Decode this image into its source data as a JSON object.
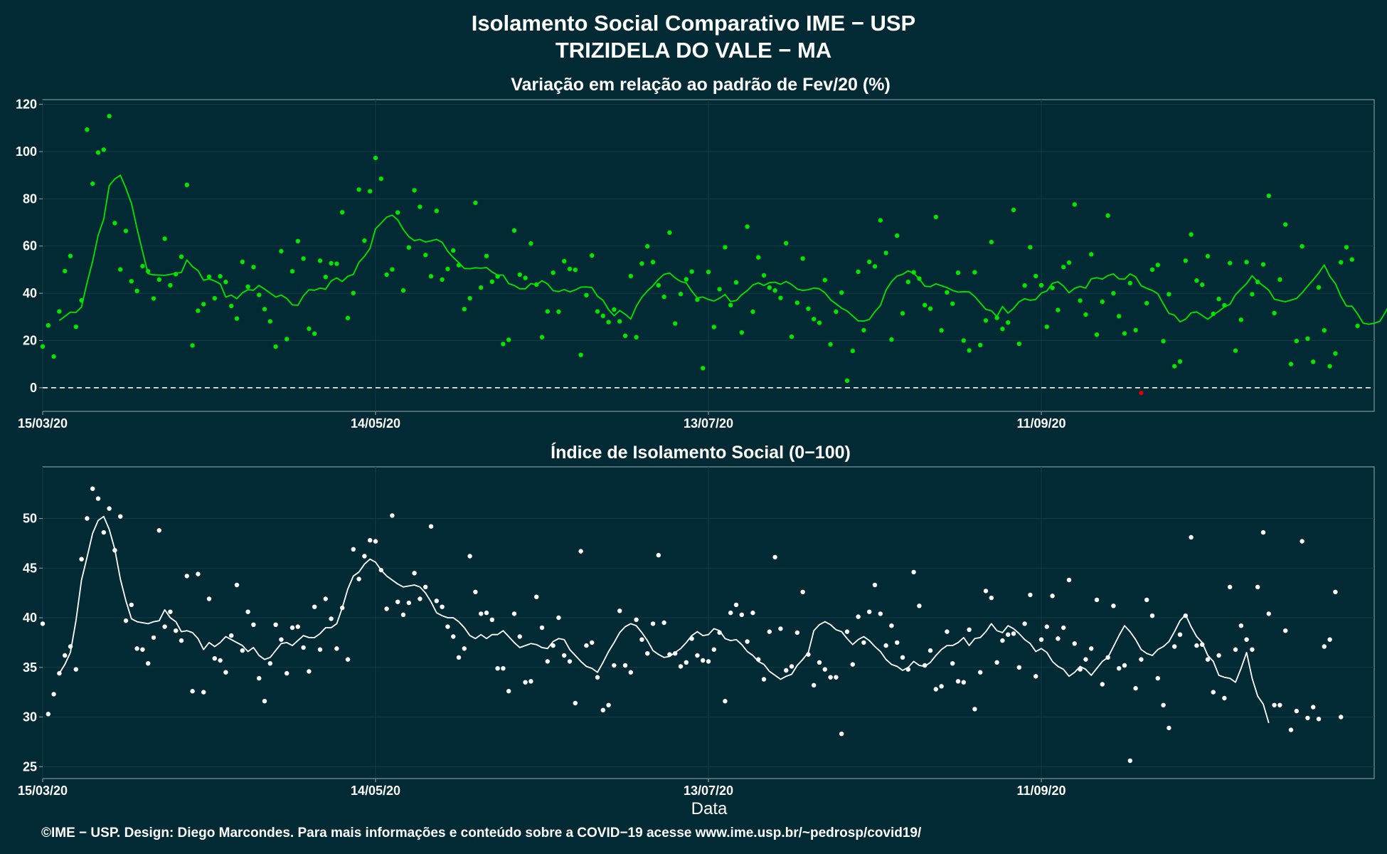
{
  "title": "Isolamento Social Comparativo IME − USP",
  "subtitle": "TRIZIDELA DO VALE − MA",
  "xlabel": "Data",
  "footer": "©IME − USP. Design: Diego Marcondes. Para mais informações e conteúdo sobre a COVID−19 acesse www.ime.usp.br/~pedrosp/covid19/",
  "colors": {
    "background": "#022a35",
    "top_series": "#00e600",
    "bottom_series": "#ffffff",
    "negative_highlight": "#e00000",
    "zero_line": "#ffffff"
  },
  "chart_data": [
    {
      "type": "scatter",
      "title": "Variação em relação ao padrão de Fev/20 (%)",
      "ylim": [
        -10,
        122
      ],
      "yticks": [
        "0",
        "20",
        "40",
        "60",
        "80",
        "100",
        "120"
      ],
      "ytick_values": [
        0,
        20,
        40,
        60,
        80,
        100,
        120
      ],
      "xrange_days": [
        "15/03/20",
        "10/11/20"
      ],
      "xticks": [
        "15/03/20",
        "14/05/20",
        "13/07/20",
        "11/09/20"
      ],
      "xtick_days": [
        0,
        60,
        120,
        180
      ],
      "grid": true,
      "reference_line": 0,
      "series": [
        {
          "kind": "points",
          "x_start": "15/03/20",
          "values": [
            17.5,
            26.4,
            13.2,
            32.3,
            49.4,
            55.8,
            25.8,
            37.0,
            109.3,
            86.4,
            99.6,
            100.8,
            115.0,
            69.7,
            50.1,
            66.4,
            45.1,
            41.0,
            51.5,
            49.3,
            37.8,
            45.8,
            63.1,
            43.4,
            48.1,
            55.5,
            85.9,
            17.9,
            32.6,
            35.4,
            47.0,
            37.9,
            47.2,
            44.8,
            34.6,
            29.3,
            53.3,
            42.8,
            51.1,
            39.3,
            33.3,
            28.1,
            17.4,
            57.8,
            20.6,
            49.3,
            62.1,
            54.7,
            25.0,
            22.9,
            53.8,
            46.9,
            52.7,
            52.5,
            74.3,
            29.5,
            40.1,
            83.9,
            62.3,
            83.2,
            97.3,
            88.5,
            47.9,
            50.1,
            74.2,
            41.2,
            59.4,
            83.6,
            76.6,
            56.2,
            47.2,
            74.9,
            45.8,
            50.3,
            58.1,
            51.9,
            33.3,
            37.9,
            78.3,
            42.4,
            55.8,
            44.9,
            47.1,
            18.5,
            20.3,
            66.6,
            47.9,
            46.5,
            61.1,
            43.7,
            21.4,
            32.3,
            48.7,
            32.2,
            53.6,
            50.3,
            49.9,
            13.9,
            39.2,
            56.0,
            32.3,
            30.4,
            27.8,
            33.1,
            28.1,
            22.0,
            47.3,
            21.4,
            52.6,
            59.9,
            53.2,
            43.4,
            38.5,
            65.7,
            27.2,
            39.7,
            45.9,
            49.2,
            37.3,
            8.3,
            49.0,
            25.7,
            41.7,
            59.5,
            35.0,
            44.6,
            23.4,
            68.2,
            32.2,
            55.2,
            47.6,
            42.4,
            41.2,
            38.0,
            61.2,
            21.6,
            36.0,
            54.7,
            33.5,
            29.1,
            27.5,
            45.6,
            18.4,
            32.2,
            40.3,
            3.0,
            15.6,
            49.1,
            24.4,
            53.3,
            51.4,
            70.9,
            57.1,
            20.4,
            64.4,
            31.5,
            44.8,
            48.9,
            46.2,
            35.0,
            33.5,
            72.3,
            24.3,
            40.4,
            35.6,
            48.7,
            20.0,
            15.8,
            48.9,
            18.1,
            28.5,
            61.7,
            29.6,
            24.9,
            27.6,
            75.3,
            18.6,
            43.3,
            59.5,
            47.3,
            43.4,
            25.8,
            42.3,
            32.9,
            51.1,
            53.0,
            77.6,
            36.9,
            31.0,
            56.5,
            22.5,
            36.4,
            72.9,
            40.0,
            30.3,
            23.0,
            44.3,
            24.4,
            -2.2,
            35.8,
            50.0,
            52.0,
            19.7,
            39.6,
            9.1,
            11.1,
            53.8,
            64.9,
            45.4,
            43.6,
            55.7,
            31.3,
            37.6,
            34.9,
            52.8,
            15.7,
            28.8,
            53.2,
            39.6,
            44.8,
            52.2,
            81.3,
            31.6,
            45.8,
            69.1,
            10.0,
            19.8,
            59.9,
            20.8,
            11.0,
            42.5,
            24.3,
            9.1,
            14.5,
            53.1,
            59.5,
            54.3,
            26.2
          ]
        },
        {
          "kind": "moving_average",
          "x_start": "18/03/20",
          "values": [
            28.5,
            30.2,
            32.0,
            31.9,
            34.2,
            44.5,
            53.5,
            64.6,
            71.3,
            85.6,
            88.4,
            90.0,
            84.5,
            78.1,
            67.5,
            57.7,
            48.3,
            47.8,
            47.7,
            47.6,
            48.0,
            48.5,
            48.8,
            54.1,
            51.3,
            49.6,
            45.5,
            46.1,
            45.2,
            44.0,
            38.4,
            39.2,
            37.7,
            40.2,
            41.5,
            41.3,
            43.3,
            41.8,
            40.1,
            38.4,
            39.2,
            37.8,
            35.1,
            34.9,
            38.9,
            41.5,
            41.3,
            42.2,
            41.7,
            45.2,
            46.5,
            45.0,
            47.2,
            48.0,
            53.1,
            55.6,
            59.0,
            67.3,
            69.7,
            72.2,
            73.1,
            71.1,
            67.0,
            64.0,
            62.3,
            62.8,
            61.7,
            62.2,
            62.8,
            61.6,
            57.8,
            55.2,
            53.0,
            50.5,
            50.4,
            50.8,
            50.6,
            50.9,
            49.0,
            47.7,
            47.7,
            44.1,
            43.3,
            41.9,
            41.9,
            44.1,
            43.6,
            45.3,
            44.0,
            41.1,
            40.7,
            41.6,
            40.6,
            41.4,
            42.6,
            42.7,
            42.4,
            38.8,
            37.0,
            33.1,
            30.5,
            32.7,
            31.1,
            29.1,
            34.5,
            38.3,
            41.0,
            43.2,
            45.9,
            48.0,
            48.6,
            46.5,
            45.0,
            44.4,
            40.9,
            38.0,
            38.4,
            37.4,
            36.7,
            37.9,
            39.5,
            36.5,
            36.9,
            39.4,
            41.1,
            43.5,
            44.4,
            43.3,
            44.5,
            44.7,
            43.8,
            45.0,
            43.7,
            41.8,
            41.2,
            41.5,
            42.2,
            41.9,
            40.2,
            37.3,
            35.5,
            33.7,
            32.5,
            30.4,
            28.3,
            28.2,
            28.9,
            32.2,
            34.8,
            41.3,
            44.9,
            47.3,
            48.0,
            49.5,
            48.5,
            46.1,
            43.0,
            42.8,
            44.0,
            43.2,
            42.4,
            41.2,
            40.5,
            40.7,
            40.6,
            38.6,
            35.9,
            33.2,
            32.6,
            30.1,
            34.4,
            31.6,
            33.6,
            36.4,
            37.7,
            37.0,
            37.4,
            40.1,
            41.0,
            44.2,
            44.9,
            43.0,
            40.2,
            42.1,
            42.9,
            42.2,
            46.1,
            46.6,
            46.0,
            47.5,
            48.2,
            46.1,
            46.0,
            48.2,
            47.0,
            43.2,
            42.1,
            41.2,
            39.8,
            35.5,
            31.5,
            30.7,
            27.9,
            29.0,
            31.7,
            32.1,
            30.6,
            29.0,
            30.8,
            32.4,
            34.2,
            35.3,
            39.4,
            41.8,
            44.1,
            47.4,
            44.9,
            43.2,
            41.3,
            37.5,
            36.9,
            36.4,
            37.1,
            37.8,
            40.2,
            43.0,
            45.7,
            48.6,
            52.0,
            47.2,
            44.1,
            38.7,
            34.6,
            34.5,
            31.3,
            27.4,
            26.9,
            27.3,
            28.1,
            31.9,
            36.4,
            34.7
          ]
        }
      ]
    },
    {
      "type": "scatter",
      "title": "Índice de Isolamento Social (0−100)",
      "ylim": [
        23.8,
        55.2
      ],
      "yticks": [
        "25",
        "30",
        "35",
        "40",
        "45",
        "50"
      ],
      "ytick_values": [
        25,
        30,
        35,
        40,
        45,
        50
      ],
      "xrange_days": [
        "15/03/20",
        "10/11/20"
      ],
      "xticks": [
        "15/03/20",
        "14/05/20",
        "13/07/20",
        "11/09/20"
      ],
      "xtick_days": [
        0,
        60,
        120,
        180
      ],
      "grid": true,
      "series": [
        {
          "kind": "points",
          "x_start": "15/03/20",
          "values": [
            39.4,
            30.3,
            32.3,
            34.4,
            36.2,
            37.1,
            34.8,
            45.9,
            50.0,
            53.0,
            52.0,
            48.6,
            51.0,
            46.8,
            50.2,
            39.7,
            41.3,
            36.9,
            36.8,
            35.4,
            38.0,
            48.8,
            39.1,
            40.6,
            38.7,
            37.7,
            44.2,
            32.6,
            44.4,
            32.5,
            41.9,
            35.9,
            35.7,
            34.5,
            38.2,
            43.3,
            36.7,
            40.6,
            39.3,
            33.9,
            31.6,
            35.4,
            39.3,
            37.8,
            34.4,
            39.0,
            39.1,
            37.0,
            34.6,
            41.1,
            36.8,
            41.9,
            39.9,
            36.9,
            41.0,
            35.8,
            46.9,
            43.9,
            46.2,
            47.8,
            47.7,
            44.8,
            40.9,
            50.3,
            41.6,
            40.3,
            41.5,
            44.5,
            41.9,
            43.1,
            49.2,
            41.7,
            41.1,
            39.1,
            38.1,
            36.0,
            36.9,
            46.2,
            42.6,
            40.4,
            40.5,
            39.8,
            34.9,
            34.9,
            32.6,
            40.4,
            38.1,
            33.5,
            33.6,
            42.1,
            39.0,
            35.6,
            37.2,
            40.0,
            36.2,
            35.6,
            31.4,
            46.7,
            37.2,
            37.5,
            34.0,
            30.7,
            31.2,
            35.2,
            40.7,
            35.2,
            34.5,
            39.8,
            37.8,
            36.4,
            39.4,
            46.3,
            39.5,
            36.3,
            36.4,
            35.1,
            35.5,
            37.9,
            36.2,
            35.7,
            35.6,
            36.8,
            38.5,
            31.6,
            40.5,
            41.3,
            40.3,
            37.6,
            40.5,
            35.8,
            33.8,
            38.6,
            46.1,
            38.9,
            34.7,
            35.1,
            38.5,
            42.6,
            36.3,
            33.2,
            35.5,
            34.8,
            34.0,
            34.0,
            28.3,
            38.6,
            35.3,
            40.1,
            37.5,
            40.6,
            43.3,
            40.4,
            37.2,
            39.2,
            37.5,
            36.0,
            34.8,
            44.6,
            41.2,
            35.2,
            36.7,
            32.8,
            33.1,
            38.6,
            35.4,
            33.6,
            33.5,
            38.8,
            30.8,
            34.5,
            42.7,
            42.0,
            35.5,
            37.7,
            38.3,
            38.4,
            35.0,
            39.4,
            42.3,
            34.1,
            37.8,
            39.1,
            42.2,
            37.9,
            39.0,
            43.8,
            37.4,
            34.8,
            35.8,
            36.9,
            41.8,
            33.3,
            36.0,
            41.2,
            34.9,
            35.2,
            25.6,
            32.9,
            35.8,
            41.8,
            40.2,
            33.9,
            31.2,
            28.9,
            37.1,
            38.3,
            40.2,
            48.1,
            37.2,
            37.3,
            35.8,
            32.5,
            36.2,
            31.9,
            43.1,
            36.8,
            39.2,
            37.8,
            36.8,
            43.1,
            48.6,
            40.4,
            31.2,
            31.2,
            38.7,
            28.7,
            30.6,
            47.7,
            29.9,
            31.0,
            29.8,
            37.1,
            37.8,
            42.6,
            30.0
          ]
        },
        {
          "kind": "moving_average",
          "x_start": "18/03/20",
          "values": [
            34.4,
            35.3,
            36.5,
            39.7,
            43.8,
            46.1,
            48.5,
            49.8,
            50.2,
            48.9,
            46.9,
            43.9,
            41.7,
            39.9,
            39.6,
            39.5,
            39.4,
            39.6,
            39.7,
            40.8,
            40.0,
            39.6,
            38.6,
            38.7,
            38.5,
            37.9,
            36.8,
            37.5,
            37.1,
            37.5,
            38.1,
            37.8,
            37.5,
            37.2,
            36.6,
            37.0,
            36.2,
            35.8,
            36.0,
            36.7,
            37.4,
            37.5,
            37.2,
            37.7,
            38.2,
            38.0,
            38.0,
            38.4,
            39.0,
            39.0,
            39.4,
            41.0,
            42.9,
            44.2,
            44.6,
            45.4,
            45.9,
            45.6,
            44.8,
            44.2,
            43.8,
            43.4,
            43.1,
            43.2,
            43.3,
            43.1,
            42.5,
            41.6,
            40.5,
            40.2,
            40.0,
            40.0,
            39.6,
            39.0,
            38.2,
            37.9,
            38.3,
            37.9,
            38.3,
            38.3,
            38.7,
            38.1,
            37.5,
            37.0,
            37.2,
            37.4,
            37.3,
            37.0,
            36.9,
            37.6,
            37.9,
            37.8,
            36.8,
            36.2,
            35.6,
            35.1,
            34.9,
            34.5,
            35.5,
            36.6,
            37.5,
            38.5,
            39.1,
            39.4,
            39.2,
            38.5,
            37.7,
            36.7,
            36.3,
            36.0,
            36.1,
            36.5,
            36.9,
            37.5,
            38.2,
            38.6,
            38.2,
            38.3,
            38.9,
            38.7,
            37.9,
            37.7,
            37.8,
            37.3,
            36.6,
            36.2,
            35.6,
            35.3,
            34.6,
            34.2,
            33.8,
            34.1,
            34.3,
            35.2,
            35.8,
            36.5,
            38.7,
            39.3,
            39.6,
            39.3,
            38.8,
            38.6,
            37.9,
            37.3,
            37.8,
            38.1,
            37.7,
            37.1,
            36.6,
            35.8,
            35.3,
            35.1,
            34.7,
            35.0,
            35.6,
            35.2,
            35.1,
            35.5,
            36.2,
            36.8,
            37.2,
            37.2,
            37.5,
            38.0,
            37.2,
            37.9,
            38.0,
            38.6,
            39.4,
            38.7,
            38.5,
            39.2,
            38.9,
            38.4,
            37.8,
            37.4,
            36.6,
            36.9,
            36.5,
            35.6,
            35.1,
            34.8,
            34.1,
            34.5,
            35.1,
            34.8,
            34.2,
            34.9,
            35.6,
            36.0,
            37.1,
            38.2,
            39.2,
            38.6,
            37.8,
            36.8,
            36.4,
            36.2,
            36.8,
            37.1,
            37.6,
            38.6,
            39.7,
            40.3,
            39.1,
            38.1,
            37.5,
            36.2,
            35.6,
            34.2,
            34.0,
            33.9,
            33.5,
            34.9,
            36.5,
            33.9,
            32.1,
            31.3,
            29.4
          ]
        }
      ]
    }
  ]
}
